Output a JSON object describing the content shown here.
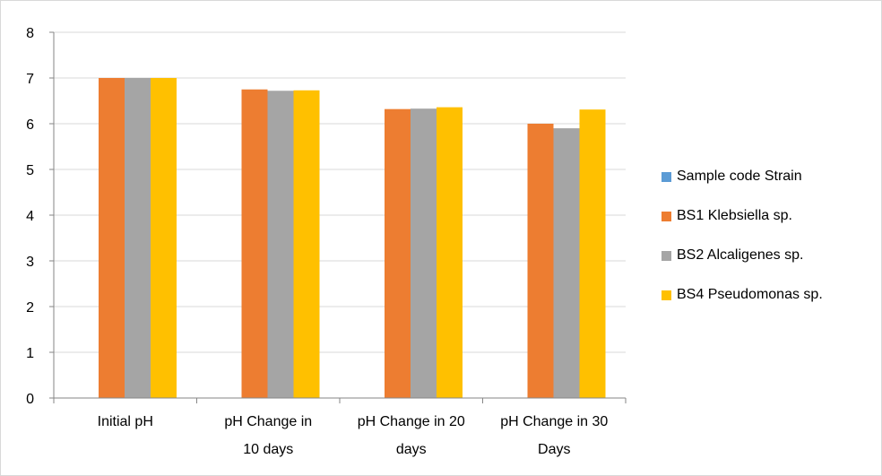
{
  "chart_data": {
    "type": "bar",
    "title": "",
    "xlabel": "",
    "ylabel": "",
    "ylim": [
      0,
      8
    ],
    "y_ticks": [
      "0",
      "1",
      "2",
      "3",
      "4",
      "5",
      "6",
      "7",
      "8"
    ],
    "grid": true,
    "legend_position": "right",
    "categories": [
      [
        "Initial pH"
      ],
      [
        "pH Change in",
        "10 days"
      ],
      [
        "pH Change in 20",
        "days"
      ],
      [
        "pH Change in 30",
        "Days"
      ]
    ],
    "series": [
      {
        "name": "Sample code Strain",
        "color": "#5b9bd5",
        "values": [
          null,
          null,
          null,
          null
        ]
      },
      {
        "name": "BS1 Klebsiella sp.",
        "color": "#ed7d31",
        "values": [
          7.0,
          6.75,
          6.32,
          6.0
        ]
      },
      {
        "name": "BS2 Alcaligenes sp.",
        "color": "#a5a5a5",
        "values": [
          7.0,
          6.72,
          6.33,
          5.9
        ]
      },
      {
        "name": "BS4 Pseudomonas sp.",
        "color": "#ffc000",
        "values": [
          7.0,
          6.73,
          6.36,
          6.31
        ]
      }
    ]
  }
}
